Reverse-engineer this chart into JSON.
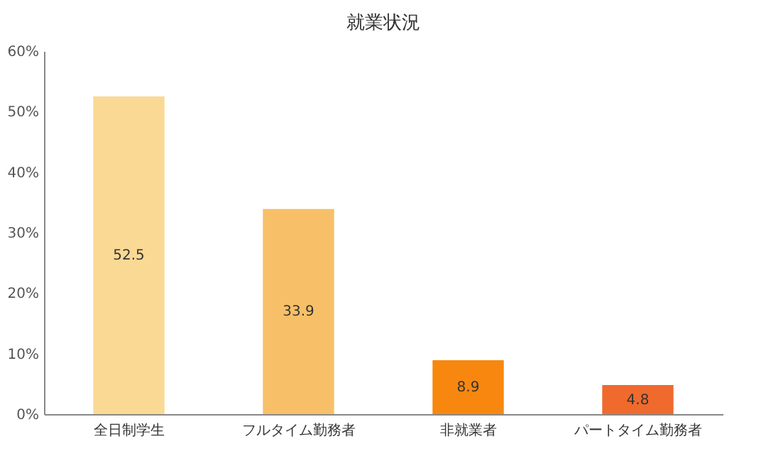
{
  "chart_data": {
    "type": "bar",
    "title": "就業状況",
    "categories": [
      "全日制学生",
      "フルタイム勤務者",
      "非就業者",
      "パートタイム勤務者"
    ],
    "values": [
      52.5,
      33.9,
      8.9,
      4.8
    ],
    "colors": [
      "#fad994",
      "#f7c068",
      "#f7870f",
      "#ef6a2c"
    ],
    "ylim": [
      0,
      60
    ],
    "yticks": [
      {
        "value": 0,
        "label": "0%"
      },
      {
        "value": 10,
        "label": "10%"
      },
      {
        "value": 20,
        "label": "20%"
      },
      {
        "value": 30,
        "label": "30%"
      },
      {
        "value": 40,
        "label": "40%"
      },
      {
        "value": 50,
        "label": "50%"
      },
      {
        "value": 60,
        "label": "60%"
      }
    ],
    "data_labels": true,
    "grid": false,
    "legend": false
  }
}
